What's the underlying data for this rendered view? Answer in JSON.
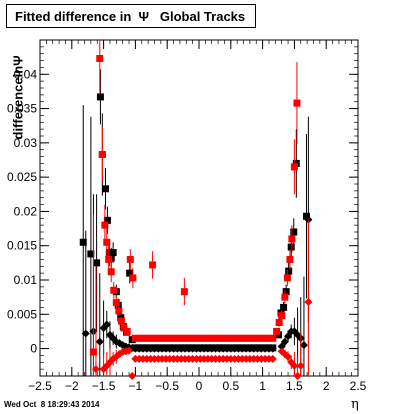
{
  "chart_data": {
    "type": "scatter",
    "title": "Fitted difference in  Ψ   Global Tracks",
    "xlabel": "η",
    "ylabel": "differenceinΨ",
    "xlim": [
      -2.5,
      2.5
    ],
    "ylim": [
      -0.004,
      0.045
    ],
    "x_ticks": [
      -2.5,
      -2,
      -1.5,
      -1,
      -0.5,
      0,
      0.5,
      1,
      1.5,
      2,
      2.5
    ],
    "x_tick_labels": [
      "−2.5",
      "−2",
      "−1.5",
      "−1",
      "−0.5",
      "0",
      "0.5",
      "1",
      "1.5",
      "2",
      "2.5"
    ],
    "y_ticks": [
      0,
      0.005,
      0.01,
      0.015,
      0.02,
      0.025,
      0.03,
      0.035,
      0.04
    ],
    "y_tick_labels": [
      "0",
      "0.005",
      "0.01",
      "0.015",
      "0.02",
      "0.025",
      "0.03",
      "0.035",
      "0.04"
    ],
    "grid": false,
    "legend": "none",
    "series": [
      {
        "color": "#000000",
        "marker": "square",
        "points": [
          [
            -1.82,
            0.0155,
            0.02
          ],
          [
            -1.7,
            0.0138,
            0.02
          ],
          [
            -1.61,
            0.0125,
            0.01
          ],
          [
            -1.55,
            0.0367,
            0.004
          ],
          [
            -1.52,
            0.0283,
            0.006
          ],
          [
            -1.47,
            0.0233,
            0.003
          ],
          [
            -1.44,
            0.0187,
            0.002
          ],
          [
            -1.41,
            0.014,
            0.002
          ],
          [
            -1.38,
            0.0132,
            0.0015
          ],
          [
            -1.35,
            0.014,
            0.0015
          ],
          [
            -1.3,
            0.0083,
            0.001
          ],
          [
            -1.27,
            0.0063,
            0.001
          ],
          [
            -1.23,
            0.0045,
            0.0008
          ],
          [
            -1.19,
            0.0032,
            0.0006
          ],
          [
            -1.14,
            0.0024,
            0.0005
          ],
          [
            -1.09,
            0.011,
            0.0015
          ],
          [
            -1.05,
            0.0013,
            0.0004
          ],
          [
            1.25,
            0.002,
            0.0004
          ],
          [
            1.29,
            0.0052,
            0.0006
          ],
          [
            1.33,
            0.006,
            0.0008
          ],
          [
            1.37,
            0.0083,
            0.001
          ],
          [
            1.41,
            0.0113,
            0.0012
          ],
          [
            1.45,
            0.0148,
            0.0015
          ],
          [
            1.49,
            0.017,
            0.002
          ],
          [
            1.53,
            0.027,
            0.005
          ],
          [
            1.69,
            0.0193,
            0.012
          ]
        ]
      },
      {
        "color": "#000000",
        "marker": "diamond",
        "points": [
          [
            -1.78,
            0.0022,
            0.015
          ],
          [
            -1.66,
            0.0025,
            0.02
          ],
          [
            -1.56,
            0.001,
            0.01
          ],
          [
            -1.5,
            0.003,
            0.004
          ],
          [
            -1.45,
            0.0035,
            0.002
          ],
          [
            -1.4,
            0.002,
            0.002
          ],
          [
            -1.35,
            0.0015,
            0.001
          ],
          [
            -1.3,
            0.001,
            0.001
          ],
          [
            -1.25,
            0.0008,
            0.0005
          ],
          [
            -1.2,
            0.0005,
            0.0005
          ],
          [
            -1.15,
            0.0003,
            0.0004
          ],
          [
            -1.1,
            0.0002,
            0.0004
          ],
          [
            -1.05,
            0.0001,
            0.0003
          ],
          [
            1.3,
            0.0003,
            0.0004
          ],
          [
            1.35,
            0.001,
            0.0006
          ],
          [
            1.4,
            0.0018,
            0.0008
          ],
          [
            1.45,
            0.0025,
            0.001
          ],
          [
            1.5,
            0.0025,
            0.002
          ],
          [
            1.55,
            0.002,
            0.004
          ],
          [
            1.6,
            0.0015,
            0.006
          ],
          [
            1.65,
            0.0005,
            0.01
          ],
          [
            1.72,
            0.0188,
            0.015
          ]
        ]
      },
      {
        "color": "#ff0000",
        "marker": "square",
        "points": [
          [
            -1.66,
            -0.0005,
            0.02
          ],
          [
            -1.56,
            0.0423,
            0.005
          ],
          [
            -1.52,
            0.0283,
            0.004
          ],
          [
            -1.48,
            0.018,
            0.003
          ],
          [
            -1.45,
            0.0155,
            0.002
          ],
          [
            -1.42,
            0.013,
            0.002
          ],
          [
            -1.38,
            0.0112,
            0.0015
          ],
          [
            -1.34,
            0.0085,
            0.0012
          ],
          [
            -1.3,
            0.0067,
            0.001
          ],
          [
            -1.26,
            0.0055,
            0.0008
          ],
          [
            -1.22,
            0.004,
            0.0006
          ],
          [
            -1.18,
            0.003,
            0.0005
          ],
          [
            -1.13,
            0.0025,
            0.0004
          ],
          [
            -1.08,
            0.013,
            0.0015
          ],
          [
            -1.04,
            0.0103,
            0.0015
          ],
          [
            -0.73,
            0.0122,
            0.002
          ],
          [
            -0.23,
            0.0083,
            0.002
          ],
          [
            1.22,
            0.0025,
            0.0004
          ],
          [
            1.26,
            0.0038,
            0.0006
          ],
          [
            1.3,
            0.0048,
            0.0008
          ],
          [
            1.35,
            0.0075,
            0.001
          ],
          [
            1.39,
            0.0103,
            0.0012
          ],
          [
            1.43,
            0.013,
            0.0015
          ],
          [
            1.46,
            0.016,
            0.002
          ],
          [
            1.5,
            0.0265,
            0.004
          ],
          [
            1.54,
            0.0358,
            0.006
          ]
        ]
      },
      {
        "color": "#ff0000",
        "marker": "diamond",
        "points": [
          [
            -1.62,
            -0.003,
            0.015
          ],
          [
            -1.5,
            -0.003,
            0.004
          ],
          [
            -1.45,
            -0.0025,
            0.002
          ],
          [
            -1.4,
            -0.002,
            0.002
          ],
          [
            -1.35,
            -0.0015,
            0.001
          ],
          [
            -1.3,
            -0.0012,
            0.001
          ],
          [
            -1.25,
            -0.0008,
            0.0005
          ],
          [
            -1.2,
            -0.0005,
            0.0005
          ],
          [
            -1.15,
            -0.0004,
            0.0004
          ],
          [
            -1.1,
            -0.0003,
            0.0003
          ],
          [
            -1.05,
            -0.004,
            0.0003
          ],
          [
            1.3,
            -0.0004,
            0.0004
          ],
          [
            1.35,
            -0.0008,
            0.0006
          ],
          [
            1.4,
            -0.0012,
            0.0008
          ],
          [
            1.45,
            -0.002,
            0.001
          ],
          [
            1.5,
            -0.0025,
            0.002
          ],
          [
            1.55,
            -0.004,
            0.003
          ],
          [
            1.6,
            -0.0025,
            0.005
          ],
          [
            1.72,
            0.0068,
            0.012
          ]
        ]
      },
      {
        "color": "#ff0000",
        "marker": "square",
        "role": "central-band",
        "x_range": [
          -1.0,
          1.2
        ],
        "y": 0.0015
      },
      {
        "color": "#000000",
        "marker": "square",
        "role": "central-band",
        "x_range": [
          -1.0,
          1.2
        ],
        "y": 0.0001
      },
      {
        "color": "#000000",
        "marker": "diamond",
        "role": "central-band",
        "x_range": [
          -1.0,
          1.2
        ],
        "y": 0.0
      },
      {
        "color": "#ff0000",
        "marker": "diamond",
        "role": "central-band",
        "x_range": [
          -1.0,
          1.2
        ],
        "y": -0.0015
      }
    ]
  },
  "footer": {
    "timestamp": "Wed Oct  8 18:29:43 2014"
  }
}
